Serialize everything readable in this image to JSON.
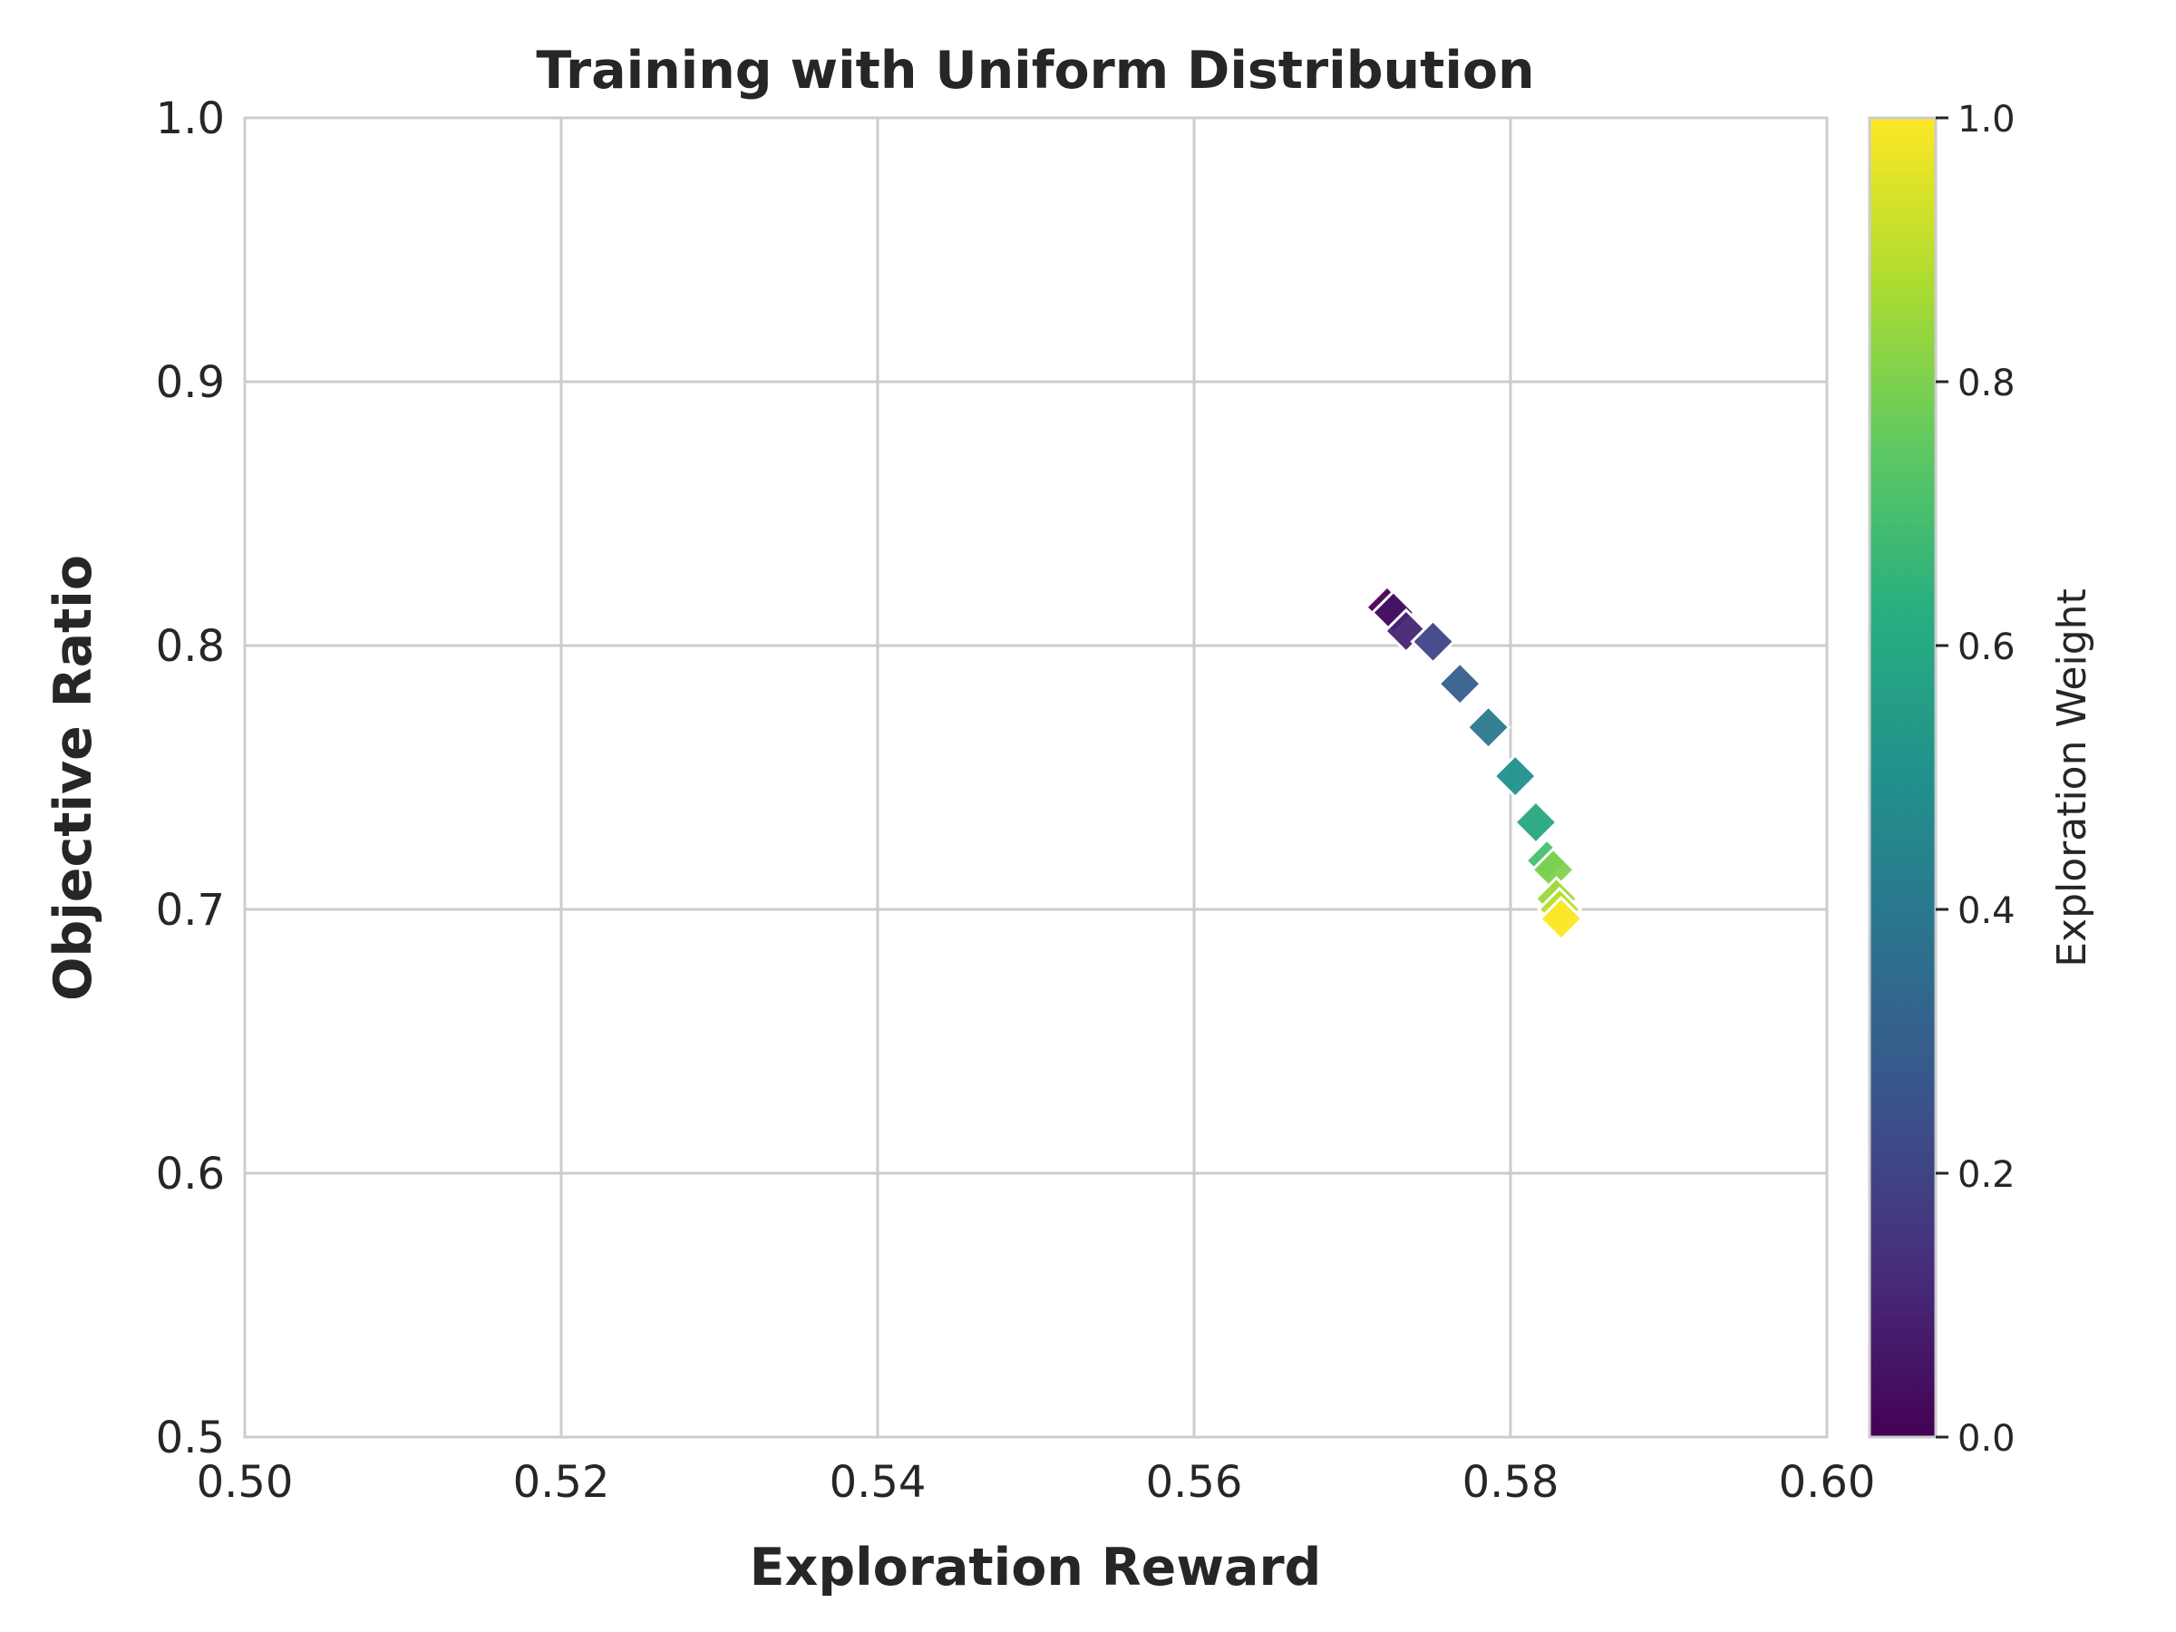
{
  "chart_data": {
    "type": "scatter",
    "title": "Training with Uniform Distribution",
    "xlabel": "Exploration Reward",
    "ylabel": "Objective Ratio",
    "xlim": [
      0.5,
      0.6
    ],
    "ylim": [
      0.5,
      1.0
    ],
    "x_ticks": [
      "0.50",
      "0.52",
      "0.54",
      "0.56",
      "0.58",
      "0.60"
    ],
    "y_ticks": [
      "0.5",
      "0.6",
      "0.7",
      "0.8",
      "0.9",
      "1.0"
    ],
    "grid": true,
    "marker": "diamond",
    "colormap": "viridis",
    "colorbar": {
      "label": "Exploration Weight",
      "range": [
        0.0,
        1.0
      ],
      "ticks": [
        "0.0",
        "0.2",
        "0.4",
        "0.6",
        "0.8",
        "1.0"
      ]
    },
    "points": [
      {
        "x": 0.5722,
        "y": 0.8145,
        "c": 0.0
      },
      {
        "x": 0.5726,
        "y": 0.8125,
        "c": 0.05
      },
      {
        "x": 0.5734,
        "y": 0.8055,
        "c": 0.1
      },
      {
        "x": 0.5751,
        "y": 0.8015,
        "c": 0.2
      },
      {
        "x": 0.5768,
        "y": 0.7855,
        "c": 0.3
      },
      {
        "x": 0.5786,
        "y": 0.769,
        "c": 0.4
      },
      {
        "x": 0.5803,
        "y": 0.7505,
        "c": 0.5
      },
      {
        "x": 0.5816,
        "y": 0.733,
        "c": 0.6
      },
      {
        "x": 0.5823,
        "y": 0.7185,
        "c": 0.7
      },
      {
        "x": 0.5827,
        "y": 0.715,
        "c": 0.8
      },
      {
        "x": 0.5829,
        "y": 0.704,
        "c": 0.85
      },
      {
        "x": 0.5831,
        "y": 0.7,
        "c": 0.9
      },
      {
        "x": 0.5832,
        "y": 0.6965,
        "c": 1.0
      }
    ]
  }
}
